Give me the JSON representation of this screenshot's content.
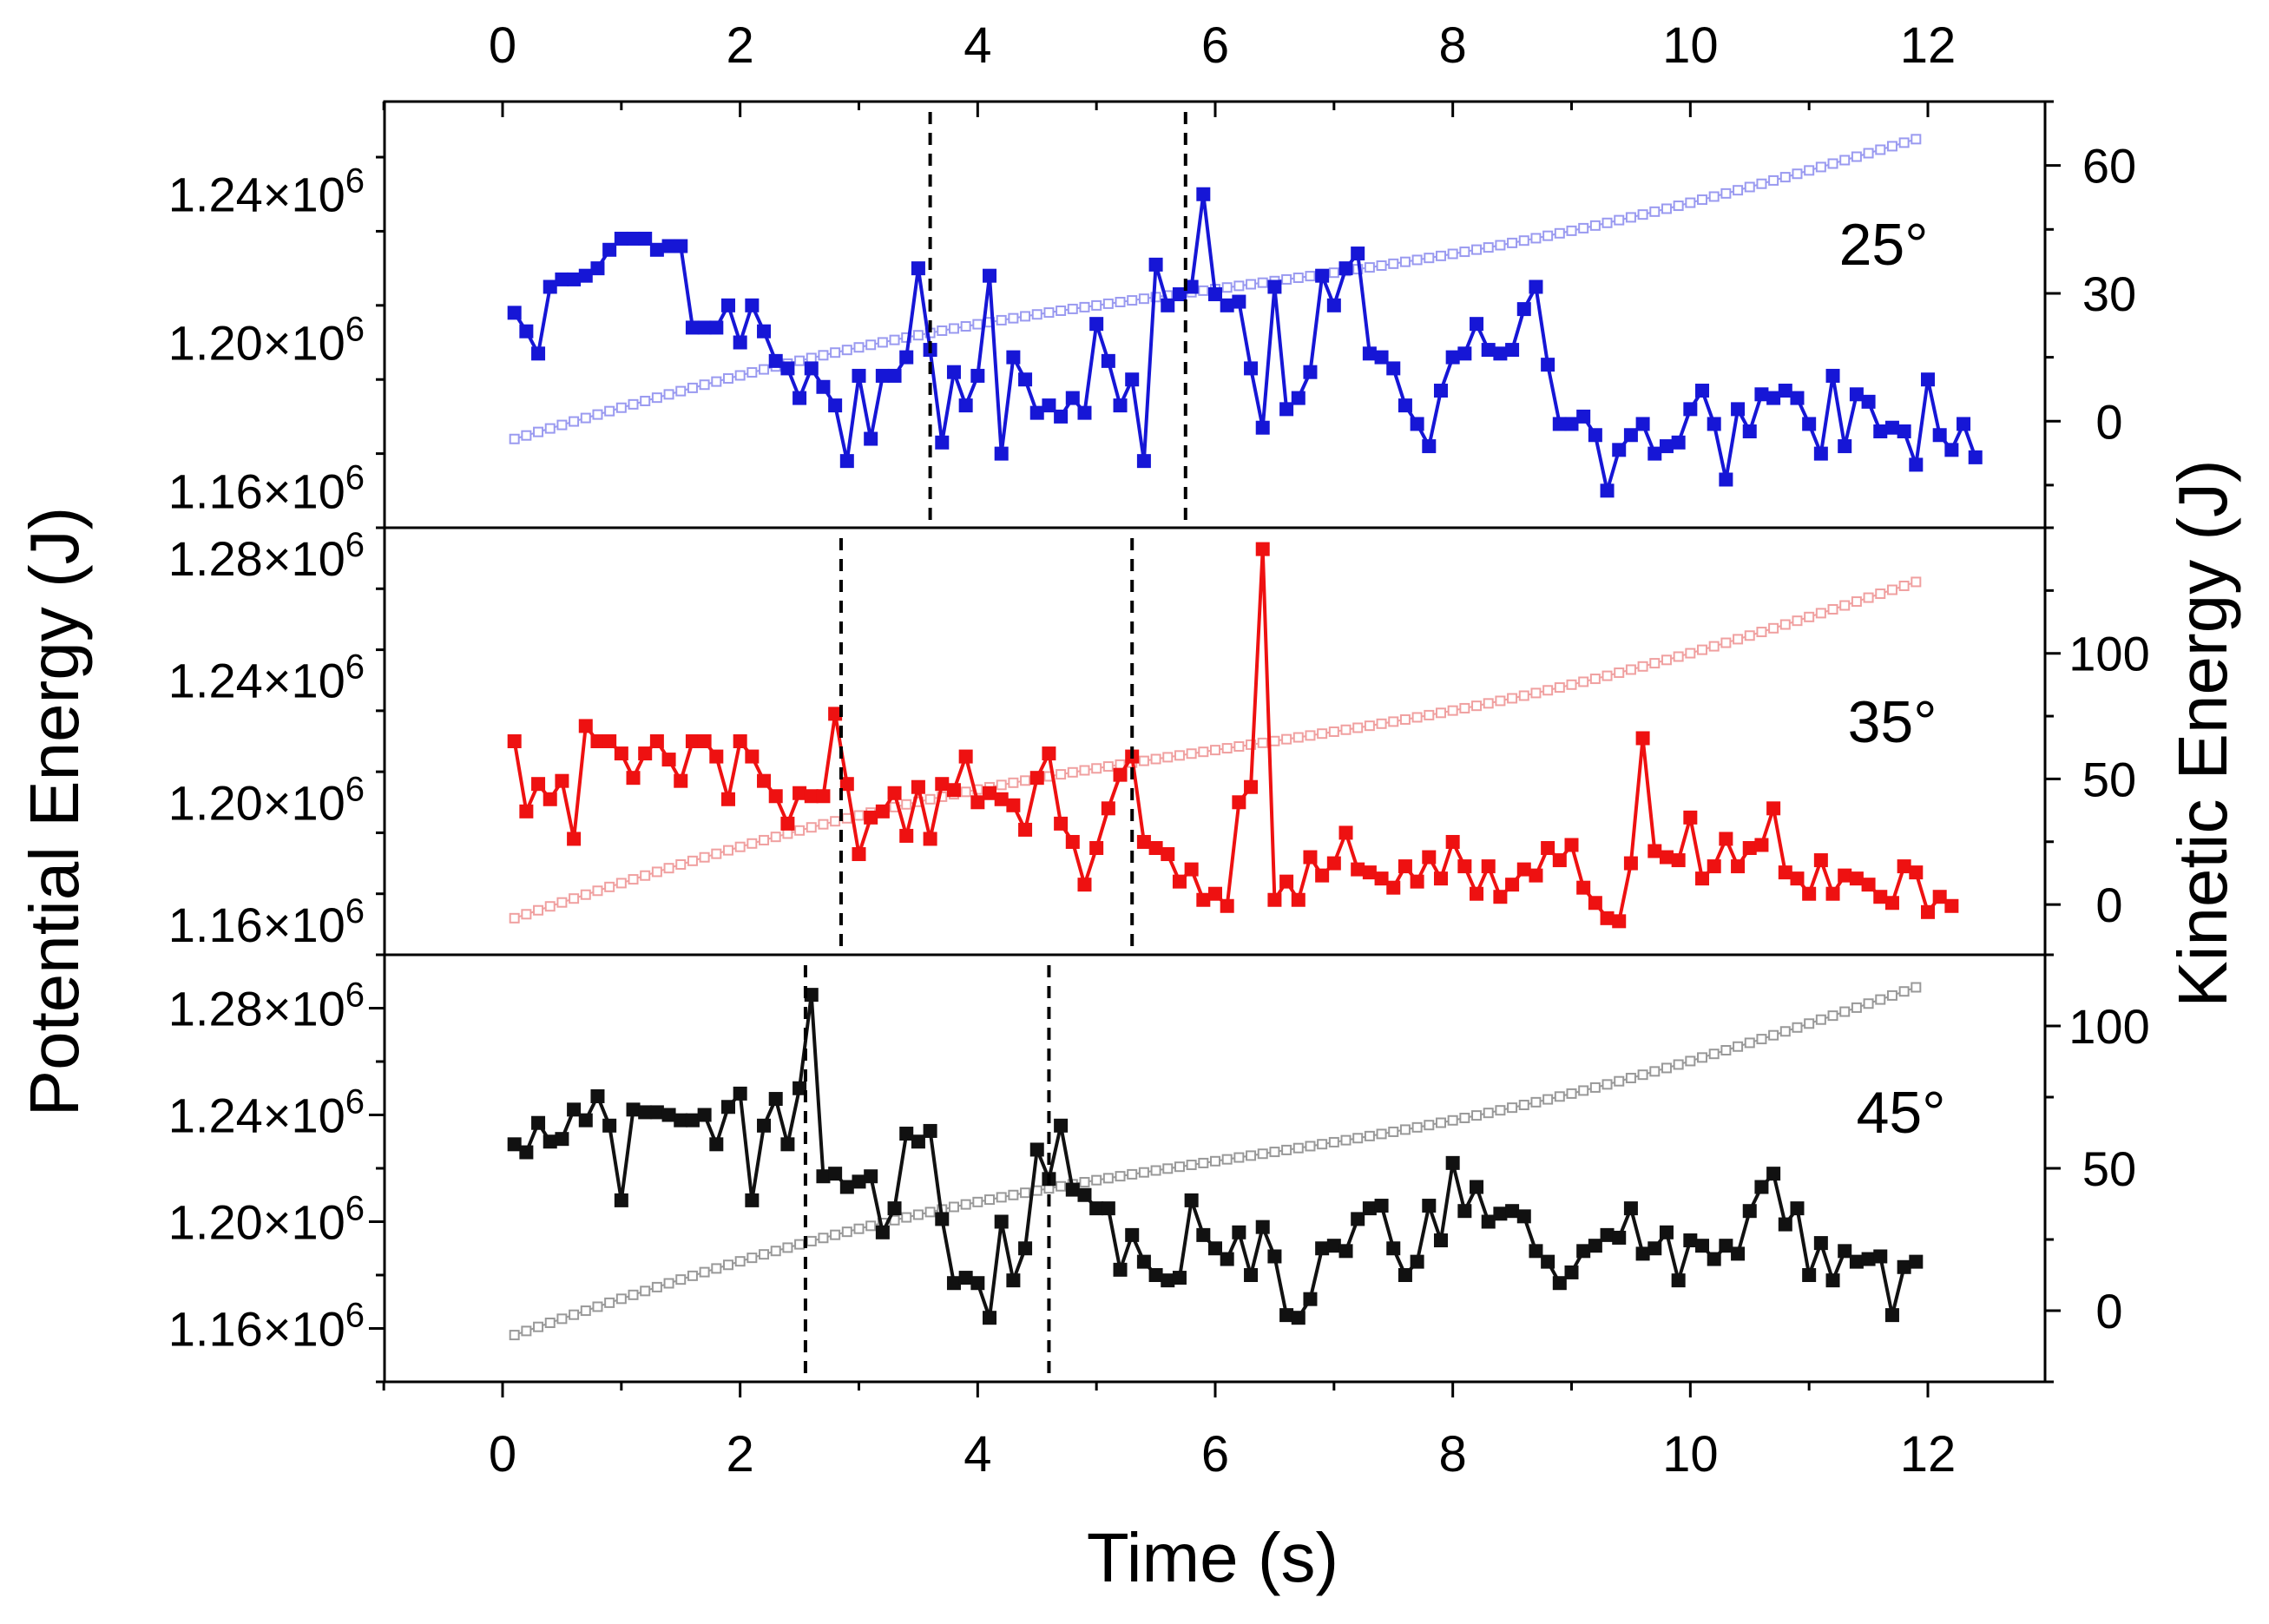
{
  "chart_data": {
    "type": "line",
    "layout": "three stacked panels sharing a time axis, dual y-axes",
    "xlabel": "Time (s)",
    "ylabel_left": "Potential Energy (J)",
    "ylabel_right": "Kinetic Energy (J)",
    "xlim": [
      -1,
      13
    ],
    "x_ticks": [
      "0",
      "2",
      "4",
      "6",
      "8",
      "10",
      "12"
    ],
    "panels": [
      {
        "label": "25°",
        "color": "#1616d6",
        "ke_color": "#9a9af0",
        "ylim_left": [
          1150000.0,
          1265000.0
        ],
        "y_ticks_left": [
          1160000.0,
          1200000.0,
          1240000.0
        ],
        "ylim_right": [
          -25,
          75
        ],
        "y_ticks_right": [
          0,
          30,
          60
        ],
        "dashed_lines_x": [
          3.6,
          5.75
        ],
        "potential_energy": [
          1208000.0,
          1203000.0,
          1197000.0,
          1215000.0,
          1217000.0,
          1217000.0,
          1218000.0,
          1220000.0,
          1225000.0,
          1228000.0,
          1228000.0,
          1228000.0,
          1225000.0,
          1226000.0,
          1226000.0,
          1204000.0,
          1204000.0,
          1204000.0,
          1210000.0,
          1200000.0,
          1210000.0,
          1203000.0,
          1195000.0,
          1193000.0,
          1185000.0,
          1193000.0,
          1188000.0,
          1183000.0,
          1168000.0,
          1191000.0,
          1174000.0,
          1191000.0,
          1191000.0,
          1196000.0,
          1220000.0,
          1198000.0,
          1173000.0,
          1192000.0,
          1183000.0,
          1191000.0,
          1218000.0,
          1170000.0,
          1196000.0,
          1190000.0,
          1181000.0,
          1183000.0,
          1180000.0,
          1185000.0,
          1181000.0,
          1205000.0,
          1195000.0,
          1183000.0,
          1190000.0,
          1168000.0,
          1221000.0,
          1210000.0,
          1213000.0,
          1215000.0,
          1240000.0,
          1213000.0,
          1210000.0,
          1211000.0,
          1193000.0,
          1177000.0,
          1215000.0,
          1182000.0,
          1185000.0,
          1192000.0,
          1218000.0,
          1210000.0,
          1220000.0,
          1224000.0,
          1197000.0,
          1196000.0,
          1193000.0,
          1183000.0,
          1178000.0,
          1172000.0,
          1187000.0,
          1196000.0,
          1197000.0,
          1205000.0,
          1198000.0,
          1197000.0,
          1198000.0,
          1209000.0,
          1215000.0,
          1194000.0,
          1178000.0,
          1178000.0,
          1180000.0,
          1175000.0,
          1160000.0,
          1171000.0,
          1175000.0,
          1178000.0,
          1170000.0,
          1172000.0,
          1173000.0,
          1182000.0,
          1187000.0,
          1178000.0,
          1163000.0,
          1182000.0,
          1176000.0,
          1186000.0,
          1185000.0,
          1187000.0,
          1185000.0,
          1178000.0,
          1170000.0,
          1191000.0,
          1172000.0,
          1186000.0,
          1184000.0,
          1176000.0,
          1177000.0,
          1176000.0,
          1167000.0,
          1190000.0,
          1175000.0,
          1171000.0,
          1178000.0,
          1169000.0
        ],
        "kinetic_energy_start": -5,
        "kinetic_energy_end": 67
      },
      {
        "label": "35°",
        "color": "#ee1111",
        "ke_color": "#f0a0a0",
        "ylim_left": [
          1150000.0,
          1290000.0
        ],
        "y_ticks_left": [
          1160000.0,
          1200000.0,
          1240000.0,
          1280000.0
        ],
        "ylim_right": [
          -20,
          150
        ],
        "y_ticks_right": [
          0,
          50,
          100
        ],
        "dashed_lines_x": [
          2.85,
          5.3
        ],
        "potential_energy": [
          1220000.0,
          1197000.0,
          1206000.0,
          1201000.0,
          1207000.0,
          1188000.0,
          1225000.0,
          1220000.0,
          1220000.0,
          1216000.0,
          1208000.0,
          1216000.0,
          1220000.0,
          1214000.0,
          1207000.0,
          1220000.0,
          1220000.0,
          1215000.0,
          1201000.0,
          1220000.0,
          1215000.0,
          1207000.0,
          1202000.0,
          1193000.0,
          1203000.0,
          1202000.0,
          1202000.0,
          1229000.0,
          1206000.0,
          1183000.0,
          1195000.0,
          1197000.0,
          1203000.0,
          1189000.0,
          1205000.0,
          1188000.0,
          1206000.0,
          1204000.0,
          1215000.0,
          1200000.0,
          1203000.0,
          1201000.0,
          1199000.0,
          1191000.0,
          1208000.0,
          1216000.0,
          1193000.0,
          1187000.0,
          1173000.0,
          1185000.0,
          1198000.0,
          1209000.0,
          1215000.0,
          1187000.0,
          1185000.0,
          1183000.0,
          1174000.0,
          1178000.0,
          1168000.0,
          1170000.0,
          1166000.0,
          1200000.0,
          1205000.0,
          1283000.0,
          1168000.0,
          1174000.0,
          1168000.0,
          1182000.0,
          1176000.0,
          1180000.0,
          1190000.0,
          1178000.0,
          1177000.0,
          1175000.0,
          1172000.0,
          1179000.0,
          1174000.0,
          1182000.0,
          1175000.0,
          1187000.0,
          1179000.0,
          1170000.0,
          1179000.0,
          1169000.0,
          1173000.0,
          1178000.0,
          1176000.0,
          1185000.0,
          1181000.0,
          1186000.0,
          1172000.0,
          1167000.0,
          1162000.0,
          1161000.0,
          1180000.0,
          1221000.0,
          1184000.0,
          1182000.0,
          1181000.0,
          1195000.0,
          1175000.0,
          1179000.0,
          1188000.0,
          1179000.0,
          1185000.0,
          1186000.0,
          1198000.0,
          1177000.0,
          1175000.0,
          1170000.0,
          1181000.0,
          1170000.0,
          1176000.0,
          1175000.0,
          1173000.0,
          1169000.0,
          1167000.0,
          1179000.0,
          1177000.0,
          1164000.0,
          1169000.0,
          1166000.0
        ],
        "kinetic_energy_start": -7,
        "kinetic_energy_end": 130
      },
      {
        "label": "45°",
        "color": "#111111",
        "ke_color": "#999999",
        "ylim_left": [
          1140000.0,
          1300000.0
        ],
        "y_ticks_left": [
          1160000.0,
          1200000.0,
          1240000.0,
          1280000.0
        ],
        "ylim_right": [
          -25,
          125
        ],
        "y_ticks_right": [
          0,
          50,
          100
        ],
        "dashed_lines_x": [
          2.55,
          4.6
        ],
        "potential_energy": [
          1229000.0,
          1226000.0,
          1237000.0,
          1230000.0,
          1231000.0,
          1242000.0,
          1238000.0,
          1247000.0,
          1236000.0,
          1208000.0,
          1242000.0,
          1241000.0,
          1241000.0,
          1240000.0,
          1238000.0,
          1238000.0,
          1240000.0,
          1229000.0,
          1243000.0,
          1248000.0,
          1208000.0,
          1236000.0,
          1246000.0,
          1229000.0,
          1250000.0,
          1285000.0,
          1217000.0,
          1218000.0,
          1213000.0,
          1215000.0,
          1217000.0,
          1196000.0,
          1205000.0,
          1233000.0,
          1230000.0,
          1234000.0,
          1201000.0,
          1177000.0,
          1179000.0,
          1177000.0,
          1164000.0,
          1200000.0,
          1178000.0,
          1190000.0,
          1227000.0,
          1216000.0,
          1236000.0,
          1212000.0,
          1210000.0,
          1205000.0,
          1205000.0,
          1182000.0,
          1195000.0,
          1185000.0,
          1180000.0,
          1178000.0,
          1179000.0,
          1208000.0,
          1195000.0,
          1190000.0,
          1186000.0,
          1196000.0,
          1180000.0,
          1198000.0,
          1187000.0,
          1165000.0,
          1164000.0,
          1171000.0,
          1190000.0,
          1191000.0,
          1189000.0,
          1201000.0,
          1205000.0,
          1206000.0,
          1190000.0,
          1180000.0,
          1185000.0,
          1206000.0,
          1193000.0,
          1222000.0,
          1204000.0,
          1213000.0,
          1200000.0,
          1203000.0,
          1204000.0,
          1202000.0,
          1189000.0,
          1185000.0,
          1177000.0,
          1181000.0,
          1189000.0,
          1191000.0,
          1195000.0,
          1194000.0,
          1205000.0,
          1188000.0,
          1190000.0,
          1196000.0,
          1178000.0,
          1193000.0,
          1191000.0,
          1186000.0,
          1191000.0,
          1188000.0,
          1204000.0,
          1213000.0,
          1218000.0,
          1199000.0,
          1205000.0,
          1180000.0,
          1192000.0,
          1178000.0,
          1189000.0,
          1185000.0,
          1186000.0,
          1187000.0,
          1165000.0,
          1183000.0,
          1185000.0
        ],
        "kinetic_energy_start": -10,
        "kinetic_energy_end": 115
      }
    ]
  }
}
